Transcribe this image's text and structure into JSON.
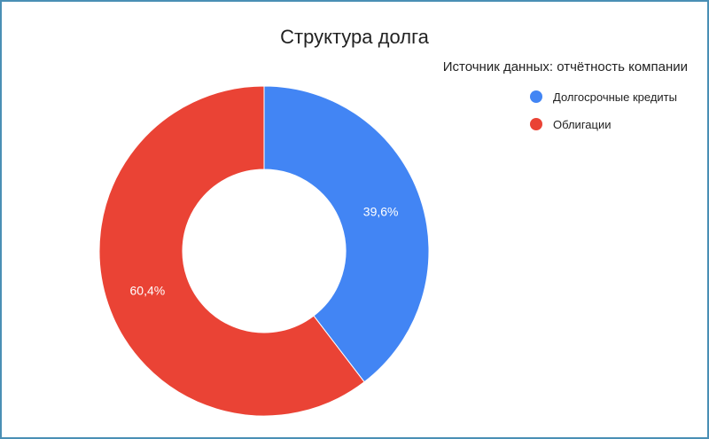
{
  "chart_data": {
    "type": "pie",
    "donut": true,
    "title": "Структура долга",
    "subtitle": "Источник данных: отчётность компании",
    "legend_position": "right",
    "slices": [
      {
        "label": "Долгосрочные кредиты",
        "value": 39.6,
        "display": "39,6%",
        "color": "#4285f4"
      },
      {
        "label": "Облигации",
        "value": 60.4,
        "display": "60,4%",
        "color": "#ea4335"
      }
    ]
  }
}
